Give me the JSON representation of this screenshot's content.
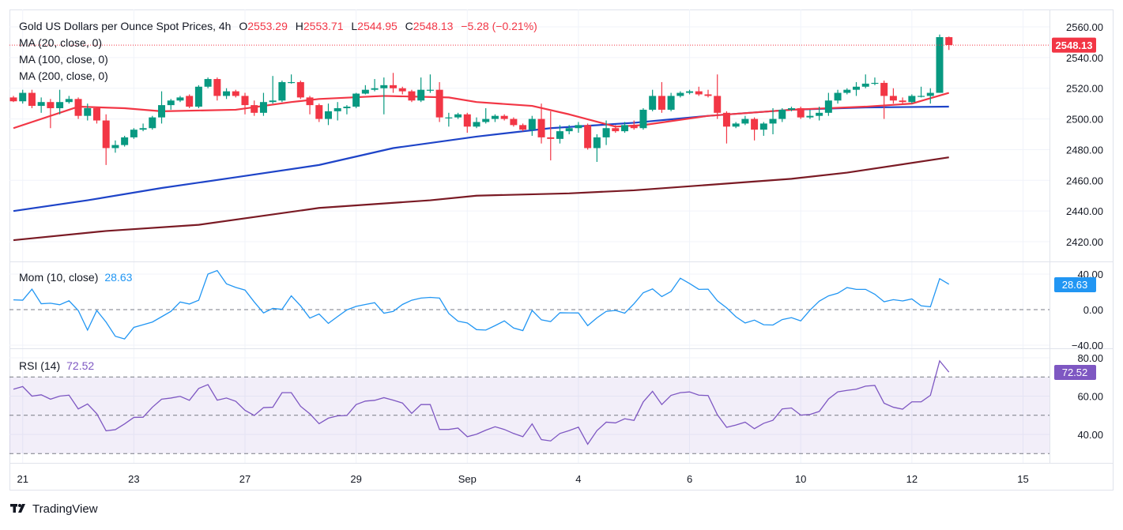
{
  "header": {
    "title": "Gold US Dollars per Ounce Spot Prices, 4h",
    "o_label": "O",
    "o_value": "2553.29",
    "h_label": "H",
    "h_value": "2553.71",
    "l_label": "L",
    "l_value": "2544.95",
    "c_label": "C",
    "c_value": "2548.13",
    "change": "−5.28 (−0.21%)"
  },
  "indicators": {
    "ma20": "MA (20, close, 0)",
    "ma100": "MA (100, close, 0)",
    "ma200": "MA (200, close, 0)",
    "mom_label": "Mom (10, close)",
    "mom_value": "28.63",
    "rsi_label": "RSI (14)",
    "rsi_value": "72.52"
  },
  "brand": "TradingView",
  "colors": {
    "up": "#089981",
    "down": "#f23645",
    "ma20": "#f23645",
    "ma100": "#1e44c8",
    "ma200": "#7a1a24",
    "mom": "#2196f3",
    "rsi": "#7e57c2"
  },
  "chart_data": {
    "type": "candlestick",
    "timeframe": "4h",
    "price_axis": {
      "ticks": [
        "2560.00",
        "2540.00",
        "2520.00",
        "2500.00",
        "2480.00",
        "2460.00",
        "2440.00",
        "2420.00"
      ],
      "range": [
        2412,
        2571
      ],
      "last_price": "2548.13"
    },
    "time_axis": {
      "ticks": [
        {
          "label": "21",
          "bar": 1
        },
        {
          "label": "23",
          "bar": 13
        },
        {
          "label": "27",
          "bar": 25
        },
        {
          "label": "29",
          "bar": 37
        },
        {
          "label": "Sep",
          "bar": 49
        },
        {
          "label": "4",
          "bar": 61
        },
        {
          "label": "6",
          "bar": 73
        },
        {
          "label": "10",
          "bar": 85
        },
        {
          "label": "12",
          "bar": 97
        },
        {
          "label": "15",
          "bar": 109
        }
      ]
    },
    "ohlc": [
      [
        2514,
        2515,
        2511,
        2511.5
      ],
      [
        2511.5,
        2519,
        2510,
        2517
      ],
      [
        2517,
        2519,
        2507,
        2508.5
      ],
      [
        2508.5,
        2514,
        2504,
        2511
      ],
      [
        2511,
        2513,
        2494,
        2507
      ],
      [
        2507,
        2519,
        2503,
        2511
      ],
      [
        2511,
        2515,
        2510,
        2513
      ],
      [
        2513,
        2514,
        2500,
        2502
      ],
      [
        2502,
        2510,
        2499,
        2507
      ],
      [
        2507,
        2508,
        2497,
        2499
      ],
      [
        2499,
        2503,
        2470,
        2481
      ],
      [
        2481,
        2486,
        2478,
        2483
      ],
      [
        2483,
        2489,
        2482,
        2488
      ],
      [
        2488,
        2494,
        2487,
        2493
      ],
      [
        2493,
        2497,
        2492,
        2494
      ],
      [
        2494,
        2502,
        2493,
        2501
      ],
      [
        2501,
        2518,
        2497,
        2509
      ],
      [
        2509,
        2513,
        2506,
        2512
      ],
      [
        2512,
        2515,
        2511,
        2514
      ],
      [
        2515,
        2516,
        2507,
        2508
      ],
      [
        2508,
        2522,
        2507,
        2521
      ],
      [
        2521,
        2527,
        2520,
        2526
      ],
      [
        2526,
        2527,
        2512,
        2515
      ],
      [
        2515,
        2520,
        2513,
        2518
      ],
      [
        2518,
        2519,
        2514,
        2515
      ],
      [
        2515,
        2517,
        2503,
        2509
      ],
      [
        2509,
        2512,
        2502,
        2504
      ],
      [
        2504,
        2517,
        2502,
        2511
      ],
      [
        2511,
        2528,
        2510,
        2512
      ],
      [
        2512,
        2525,
        2511,
        2524
      ],
      [
        2524,
        2529,
        2523,
        2524
      ],
      [
        2524,
        2525,
        2513,
        2514
      ],
      [
        2514,
        2515,
        2503,
        2509
      ],
      [
        2509,
        2510,
        2498,
        2500
      ],
      [
        2500,
        2510,
        2496,
        2505
      ],
      [
        2505,
        2511,
        2499,
        2507
      ],
      [
        2507,
        2509,
        2503,
        2508
      ],
      [
        2508,
        2517,
        2507,
        2516.5
      ],
      [
        2516.5,
        2522,
        2516,
        2519
      ],
      [
        2519,
        2526,
        2518,
        2520
      ],
      [
        2520,
        2527,
        2503,
        2522
      ],
      [
        2522,
        2530,
        2517,
        2520
      ],
      [
        2520,
        2521,
        2516,
        2518
      ],
      [
        2518,
        2519,
        2511,
        2512
      ],
      [
        2512,
        2527,
        2511,
        2519
      ],
      [
        2519,
        2529,
        2517,
        2519
      ],
      [
        2519,
        2524,
        2498,
        2501
      ],
      [
        2501,
        2504,
        2495,
        2501
      ],
      [
        2501,
        2504,
        2500,
        2503
      ],
      [
        2503,
        2504,
        2491,
        2495
      ],
      [
        2495,
        2501,
        2494,
        2498
      ],
      [
        2498,
        2507,
        2497,
        2500
      ],
      [
        2500,
        2503,
        2498,
        2502
      ],
      [
        2502,
        2503,
        2499,
        2500
      ],
      [
        2500,
        2501,
        2495,
        2496
      ],
      [
        2496,
        2497,
        2492,
        2493
      ],
      [
        2493,
        2502,
        2489,
        2500
      ],
      [
        2500,
        2510,
        2484,
        2488
      ],
      [
        2488,
        2505,
        2473,
        2487
      ],
      [
        2487,
        2496,
        2484,
        2492
      ],
      [
        2492,
        2496,
        2490,
        2494
      ],
      [
        2494,
        2498,
        2491,
        2496
      ],
      [
        2496,
        2497,
        2480,
        2481
      ],
      [
        2481,
        2490,
        2472,
        2488
      ],
      [
        2488,
        2499,
        2483,
        2494
      ],
      [
        2494,
        2496,
        2491,
        2492
      ],
      [
        2492,
        2498,
        2491,
        2496
      ],
      [
        2496,
        2499,
        2493,
        2494
      ],
      [
        2494,
        2507,
        2493,
        2506
      ],
      [
        2506,
        2519,
        2505,
        2515
      ],
      [
        2515,
        2524,
        2504,
        2506
      ],
      [
        2506,
        2517,
        2505,
        2515
      ],
      [
        2515,
        2518,
        2514,
        2517
      ],
      [
        2517,
        2519,
        2516,
        2518
      ],
      [
        2518,
        2521,
        2515,
        2516
      ],
      [
        2516,
        2519,
        2514,
        2515
      ],
      [
        2515,
        2529,
        2500,
        2504
      ],
      [
        2504,
        2505,
        2484,
        2495
      ],
      [
        2495,
        2498,
        2494,
        2497
      ],
      [
        2497,
        2502,
        2496,
        2500
      ],
      [
        2500,
        2501,
        2486,
        2493
      ],
      [
        2493,
        2498,
        2489,
        2497
      ],
      [
        2497,
        2507,
        2490,
        2500
      ],
      [
        2500,
        2507,
        2498,
        2506
      ],
      [
        2506,
        2508,
        2505,
        2507
      ],
      [
        2507,
        2508,
        2500,
        2501
      ],
      [
        2501,
        2506,
        2500,
        2502
      ],
      [
        2502,
        2508,
        2499,
        2504
      ],
      [
        2504,
        2517,
        2502,
        2512
      ],
      [
        2512,
        2519,
        2510,
        2517
      ],
      [
        2517,
        2520,
        2516,
        2519
      ],
      [
        2519,
        2524,
        2515,
        2521
      ],
      [
        2521,
        2529,
        2520,
        2523
      ],
      [
        2523,
        2527,
        2522,
        2523.5
      ],
      [
        2523.5,
        2525,
        2500,
        2515
      ],
      [
        2515,
        2520,
        2510,
        2512
      ],
      [
        2512,
        2514,
        2510,
        2511
      ],
      [
        2511,
        2516,
        2510,
        2515
      ],
      [
        2515,
        2521,
        2514,
        2515
      ],
      [
        2515,
        2520,
        2510,
        2517
      ],
      [
        2517,
        2555,
        2517,
        2553.3
      ],
      [
        2553.29,
        2553.71,
        2544.95,
        2548.13
      ]
    ],
    "ma20": [
      [
        0,
        2494
      ],
      [
        7,
        2508
      ],
      [
        12,
        2507
      ],
      [
        16,
        2505
      ],
      [
        24,
        2506
      ],
      [
        30,
        2511
      ],
      [
        33,
        2513
      ],
      [
        40,
        2515
      ],
      [
        47,
        2514
      ],
      [
        50,
        2511
      ],
      [
        56,
        2508.5
      ],
      [
        60,
        2503
      ],
      [
        65,
        2495
      ],
      [
        68,
        2496
      ],
      [
        75,
        2502
      ],
      [
        84,
        2506
      ],
      [
        92,
        2508
      ],
      [
        97,
        2510
      ],
      [
        101,
        2517
      ]
    ],
    "ma100": [
      [
        0,
        2440
      ],
      [
        8,
        2447
      ],
      [
        16,
        2455
      ],
      [
        24,
        2462
      ],
      [
        33,
        2470
      ],
      [
        41,
        2481
      ],
      [
        50,
        2488.5
      ],
      [
        58,
        2494
      ],
      [
        67,
        2497.5
      ],
      [
        75,
        2502
      ],
      [
        84,
        2506
      ],
      [
        92,
        2507.5
      ],
      [
        101,
        2508
      ]
    ],
    "ma200": [
      [
        0,
        2421
      ],
      [
        10,
        2427
      ],
      [
        20,
        2431
      ],
      [
        33,
        2442
      ],
      [
        45,
        2447
      ],
      [
        50,
        2450
      ],
      [
        60,
        2451.5
      ],
      [
        67,
        2453.5
      ],
      [
        75,
        2457
      ],
      [
        84,
        2461
      ],
      [
        90,
        2465
      ],
      [
        101,
        2475
      ]
    ],
    "momentum": {
      "ticks": [
        "40.00",
        "0.00",
        "−40.00"
      ],
      "range": [
        -48,
        48
      ],
      "values": [
        11,
        10.6,
        23,
        6.6,
        7.2,
        5.5,
        10,
        -1,
        -23,
        -1,
        -14,
        -30,
        -33,
        -20,
        -17,
        -14,
        -8,
        -2,
        8.6,
        6.3,
        10.6,
        40,
        44,
        29,
        25,
        22,
        8.6,
        -3.7,
        1.4,
        0.3,
        15.5,
        4.3,
        -9.5,
        -4.9,
        -15.5,
        -7.8,
        -0.3,
        3.7,
        5.8,
        7.8,
        -4,
        -2,
        5.8,
        10.6,
        13,
        13.8,
        13,
        -4.3,
        -13,
        -15,
        -22.5,
        -23,
        -18,
        -12.7,
        -20.7,
        -23.6,
        -0.9,
        -11.5,
        -13.5,
        -3.5,
        -3.7,
        -3.7,
        -18,
        -9.2,
        -2,
        -0.9,
        -4,
        6.6,
        19,
        23.3,
        14.7,
        20.4,
        35.4,
        29.4,
        22.8,
        23,
        10,
        2,
        -8,
        -15,
        -11.8,
        -17,
        -17.3,
        -11.2,
        -9,
        -12.7,
        -0.6,
        9.5,
        15.5,
        18.4,
        24.8,
        22.8,
        22.8,
        17.3,
        8.9,
        11.2,
        9.8,
        12,
        4.3,
        3.2,
        34.8,
        28.63
      ]
    },
    "rsi": {
      "ticks": [
        "80.00",
        "60.00",
        "40.00"
      ],
      "bands": [
        70,
        50,
        30
      ],
      "values": [
        63.6,
        65,
        60,
        60.7,
        58.4,
        60,
        60.5,
        53.3,
        55.9,
        50.8,
        41.9,
        42.5,
        45.5,
        48.9,
        49,
        54.2,
        58.4,
        59,
        59.9,
        57.8,
        64,
        66,
        57.9,
        59,
        57.3,
        52.6,
        49.9,
        54,
        54.2,
        61.8,
        61.8,
        54.7,
        50.8,
        45.6,
        48.5,
        49.7,
        49.9,
        55.6,
        57.4,
        57.8,
        59.2,
        57.9,
        56.4,
        51,
        55.6,
        55.6,
        42.6,
        42.6,
        43.3,
        38.8,
        40.1,
        42.2,
        44,
        42.6,
        40.5,
        38.8,
        45.5,
        37.3,
        36.6,
        40.5,
        42,
        43.8,
        34.9,
        42,
        46.4,
        46,
        48.2,
        47.3,
        57,
        62.5,
        55.6,
        60.4,
        61.8,
        62.2,
        60.5,
        60.3,
        50.3,
        43.7,
        44.9,
        46.4,
        43,
        45.8,
        47.4,
        53.3,
        53.8,
        50.1,
        50.4,
        52,
        58.5,
        62.2,
        63,
        63.6,
        65.2,
        65.6,
        56.3,
        54.2,
        53.2,
        57,
        57,
        60.4,
        78.4,
        72.52
      ]
    }
  }
}
